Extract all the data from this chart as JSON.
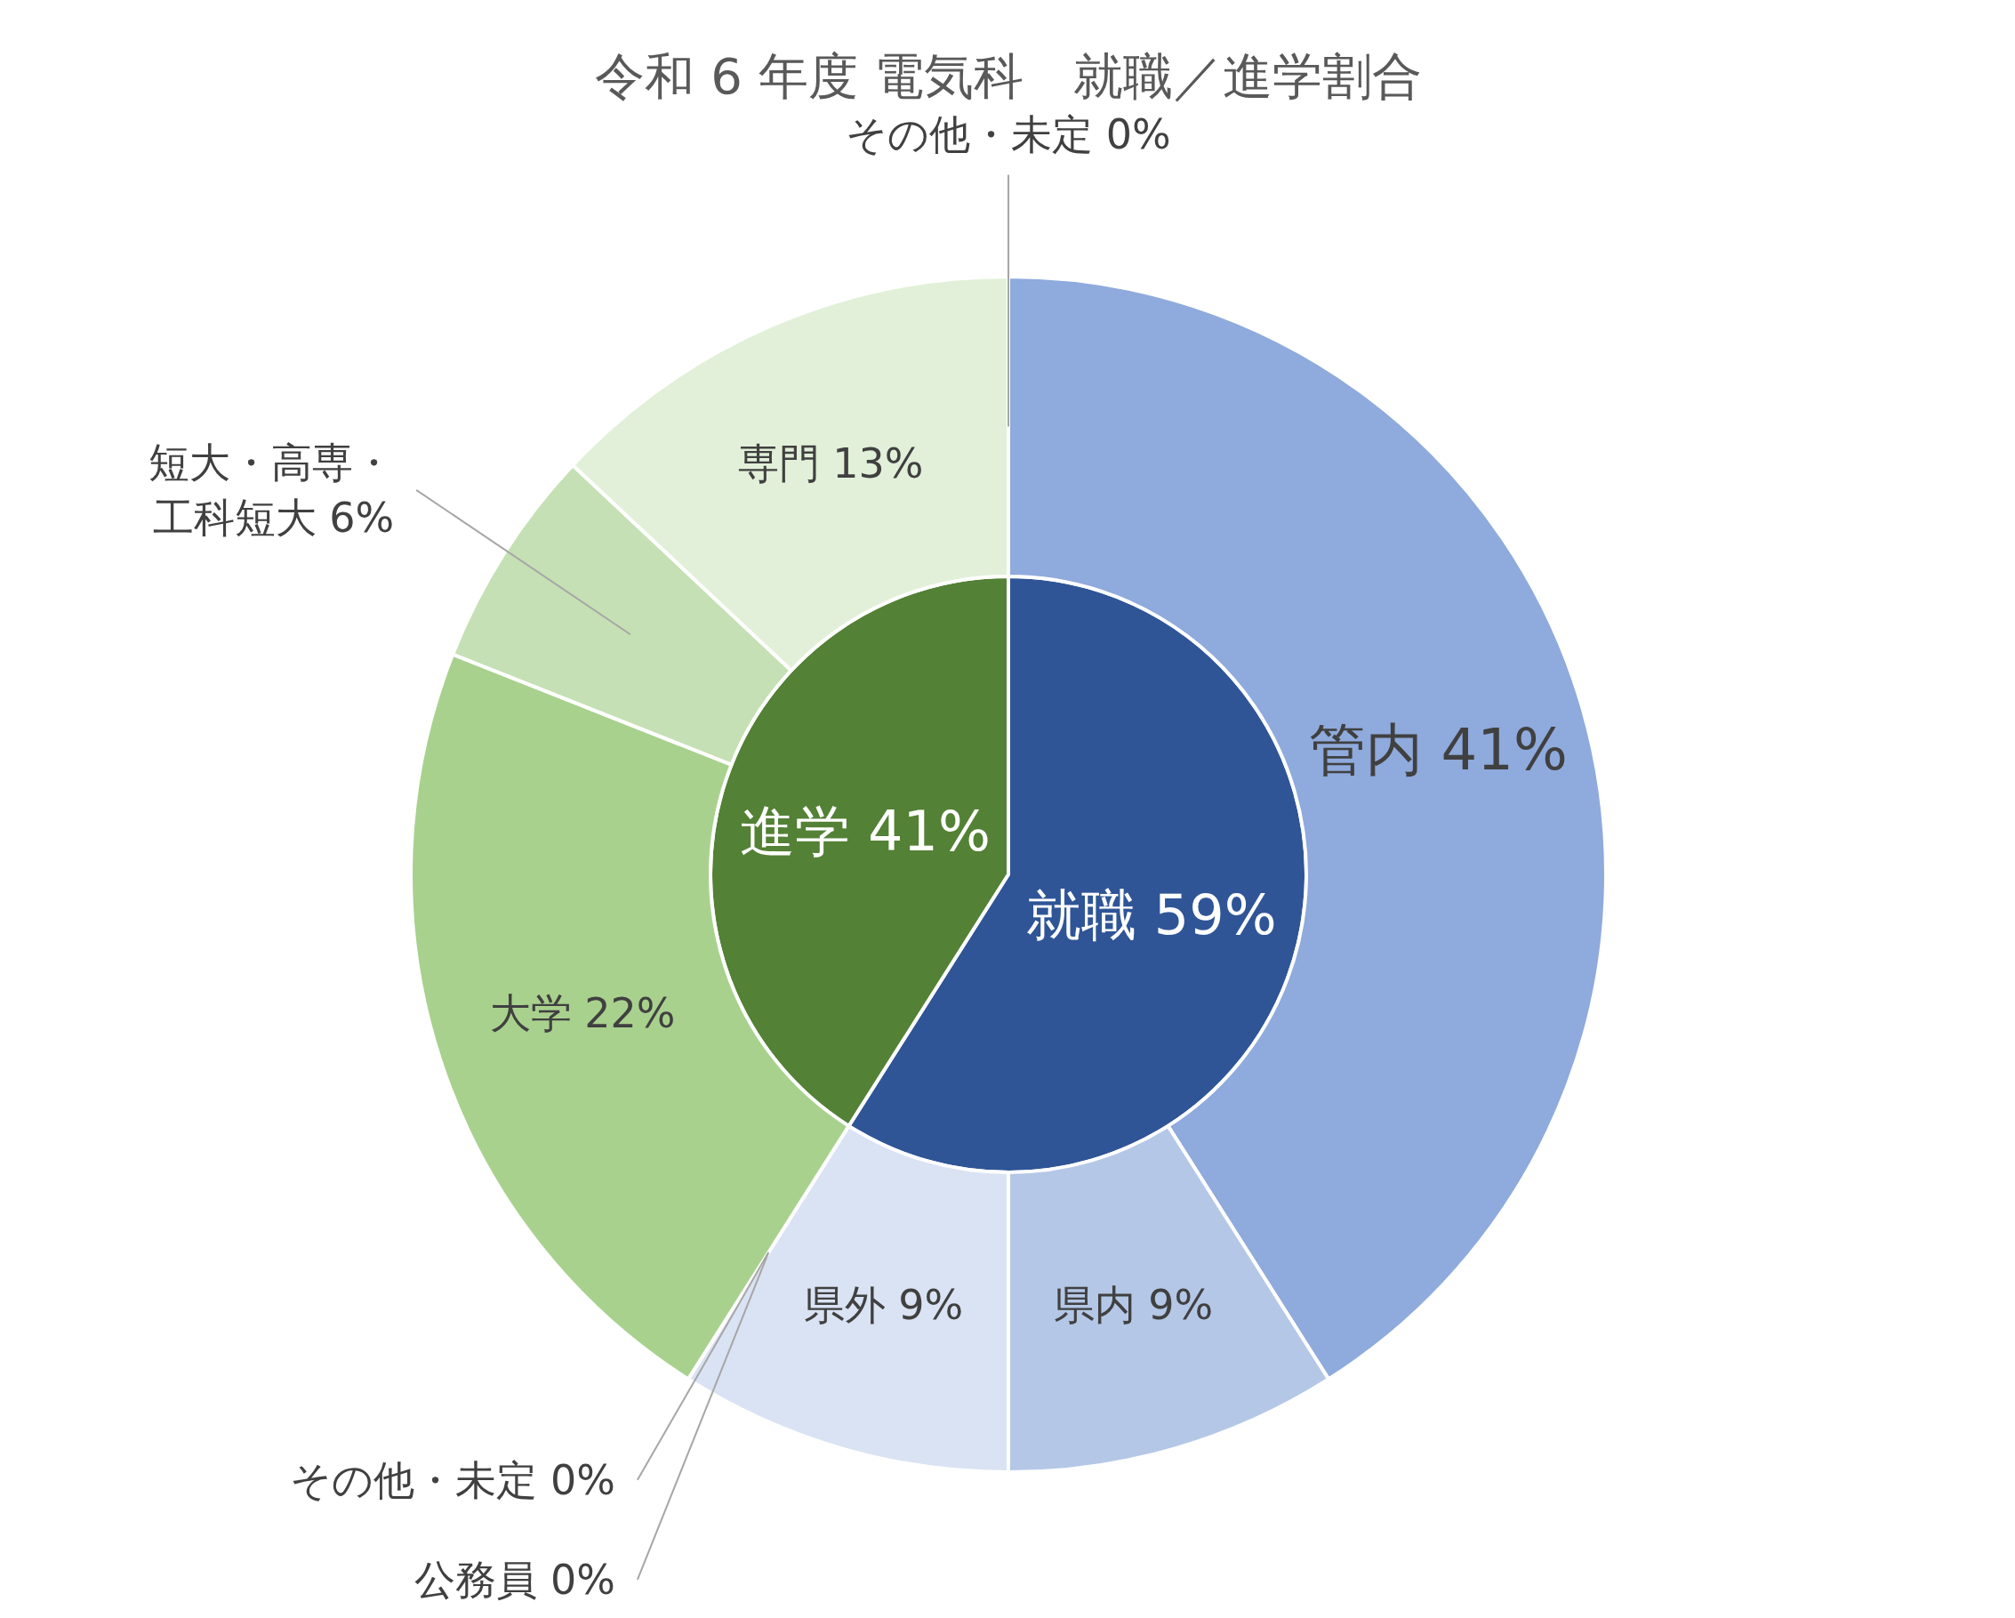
{
  "chart_data": [
    {
      "type": "pie",
      "title": "令和 6 年度 電気科　就職／進学割合",
      "categories": [
        "就職",
        "進学"
      ],
      "values": [
        59,
        41
      ],
      "colors": [
        "#2f5597",
        "#538135"
      ],
      "value_labels": [
        "59%",
        "41%"
      ]
    },
    {
      "type": "donut",
      "categories": [
        "管内",
        "県内",
        "県外",
        "その他・未定",
        "公務員",
        "大学",
        "短大・高専・工科短大",
        "専門",
        "その他・未定"
      ],
      "values": [
        41,
        9,
        9,
        0,
        0,
        22,
        6,
        13,
        0
      ],
      "colors": [
        "#8faadc",
        "#b4c7e7",
        "#dae3f3",
        "#c9d5ec",
        "#d9d9d9",
        "#a9d18e",
        "#c5e0b4",
        "#e2f0d9",
        "#eaf3e3"
      ],
      "value_labels": [
        "41%",
        "9%",
        "9%",
        "0%",
        "0%",
        "22%",
        "6%",
        "13%",
        "0%"
      ]
    }
  ]
}
